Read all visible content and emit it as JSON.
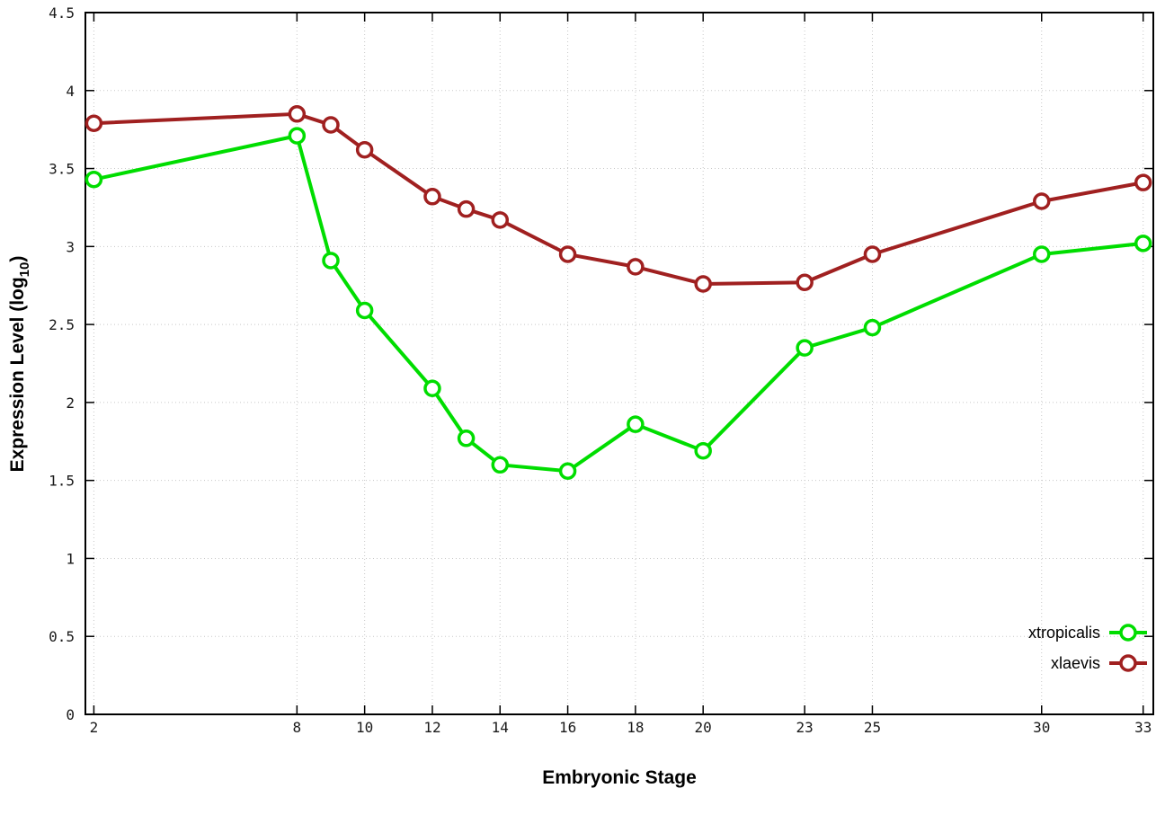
{
  "page": {
    "background": "#ffffff"
  },
  "chart_data": {
    "type": "line",
    "title": "",
    "xlabel": "Embryonic Stage",
    "ylabel": "Expression Level (log10)",
    "ylabel_parts": {
      "prefix": "Expression Level (log",
      "sub": "10",
      "suffix": ")"
    },
    "x": [
      2,
      8,
      9,
      10,
      12,
      13,
      14,
      16,
      18,
      20,
      23,
      25,
      30,
      33
    ],
    "xlim": [
      2,
      33
    ],
    "ylim": [
      0,
      4.5
    ],
    "xticks": [
      2,
      8,
      10,
      12,
      14,
      16,
      18,
      20,
      23,
      25,
      30,
      33
    ],
    "yticks": [
      0,
      0.5,
      1,
      1.5,
      2,
      2.5,
      3,
      3.5,
      4,
      4.5
    ],
    "grid": true,
    "legend_position": "bottom-right",
    "axis_color": "#000000",
    "grid_color": "#c8c8c8",
    "marker_fill": "#ffffff",
    "series": [
      {
        "name": "xtropicalis",
        "color": "#00dd00",
        "values": [
          3.43,
          3.71,
          2.91,
          2.59,
          2.09,
          1.77,
          1.6,
          1.56,
          1.86,
          1.69,
          2.35,
          2.48,
          2.95,
          3.02
        ]
      },
      {
        "name": "xlaevis",
        "color": "#a02020",
        "values": [
          3.79,
          3.85,
          3.78,
          3.62,
          3.32,
          3.24,
          3.17,
          2.95,
          2.87,
          2.76,
          2.77,
          2.95,
          3.29,
          3.41
        ]
      }
    ]
  }
}
